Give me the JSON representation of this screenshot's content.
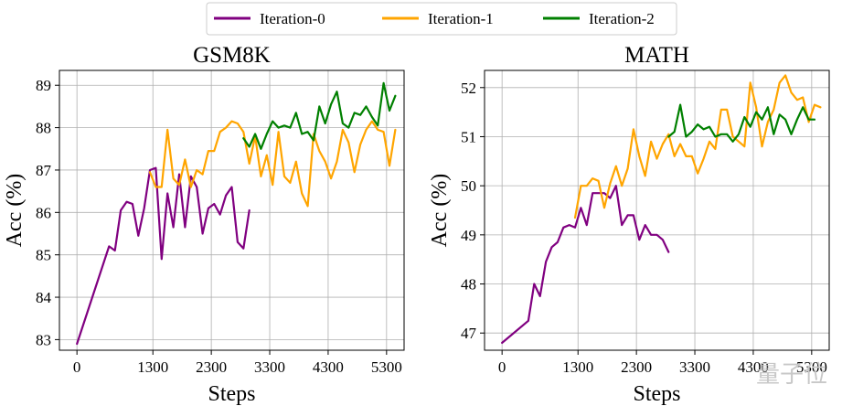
{
  "legend": {
    "entries": [
      {
        "name": "Iteration-0",
        "color": "#800080"
      },
      {
        "name": "Iteration-1",
        "color": "#FFA500"
      },
      {
        "name": "Iteration-2",
        "color": "#008000"
      }
    ],
    "placement": "top-center"
  },
  "watermark": "量子位",
  "chart_data": [
    {
      "type": "line",
      "title": "GSM8K",
      "xlabel": "Steps",
      "ylabel": "Acc (%)",
      "xlim": [
        -300,
        5600
      ],
      "ylim": [
        82.75,
        89.35
      ],
      "xticks": [
        0,
        1300,
        2300,
        3300,
        4300,
        5300
      ],
      "yticks": [
        83,
        84,
        85,
        86,
        87,
        88,
        89
      ],
      "grid": true,
      "series": [
        {
          "name": "Iteration-0",
          "color": "#800080",
          "points": [
            [
              0,
              82.9
            ],
            [
              550,
              85.2
            ],
            [
              650,
              85.1
            ],
            [
              750,
              86.05
            ],
            [
              850,
              86.25
            ],
            [
              950,
              86.2
            ],
            [
              1050,
              85.45
            ],
            [
              1150,
              86.1
            ],
            [
              1250,
              87.0
            ],
            [
              1350,
              87.05
            ],
            [
              1450,
              84.9
            ],
            [
              1550,
              86.45
            ],
            [
              1650,
              85.65
            ],
            [
              1750,
              86.9
            ],
            [
              1850,
              85.65
            ],
            [
              1950,
              86.85
            ],
            [
              2050,
              86.6
            ],
            [
              2150,
              85.5
            ],
            [
              2250,
              86.1
            ],
            [
              2350,
              86.2
            ],
            [
              2450,
              85.95
            ],
            [
              2550,
              86.4
            ],
            [
              2650,
              86.6
            ],
            [
              2750,
              85.3
            ],
            [
              2850,
              85.15
            ],
            [
              2950,
              86.05
            ]
          ]
        },
        {
          "name": "Iteration-1",
          "color": "#FFA500",
          "points": [
            [
              1250,
              86.95
            ],
            [
              1350,
              86.6
            ],
            [
              1450,
              86.6
            ],
            [
              1550,
              87.95
            ],
            [
              1650,
              86.8
            ],
            [
              1750,
              86.65
            ],
            [
              1850,
              87.25
            ],
            [
              1950,
              86.6
            ],
            [
              2050,
              87.0
            ],
            [
              2150,
              86.9
            ],
            [
              2250,
              87.45
            ],
            [
              2350,
              87.45
            ],
            [
              2450,
              87.9
            ],
            [
              2550,
              88.0
            ],
            [
              2650,
              88.15
            ],
            [
              2750,
              88.1
            ],
            [
              2850,
              87.9
            ],
            [
              2950,
              87.15
            ],
            [
              3050,
              87.8
            ],
            [
              3150,
              86.85
            ],
            [
              3250,
              87.35
            ],
            [
              3350,
              86.65
            ],
            [
              3450,
              87.9
            ],
            [
              3550,
              86.85
            ],
            [
              3650,
              86.7
            ],
            [
              3750,
              87.2
            ],
            [
              3850,
              86.45
            ],
            [
              3950,
              86.15
            ],
            [
              4050,
              87.85
            ],
            [
              4150,
              87.45
            ],
            [
              4250,
              87.2
            ],
            [
              4350,
              86.8
            ],
            [
              4450,
              87.2
            ],
            [
              4550,
              87.95
            ],
            [
              4650,
              87.65
            ],
            [
              4750,
              86.95
            ],
            [
              4850,
              87.6
            ],
            [
              4950,
              87.95
            ],
            [
              5050,
              88.15
            ],
            [
              5150,
              87.95
            ],
            [
              5250,
              87.9
            ],
            [
              5350,
              87.1
            ],
            [
              5450,
              87.95
            ]
          ]
        },
        {
          "name": "Iteration-2",
          "color": "#008000",
          "points": [
            [
              2850,
              87.75
            ],
            [
              2950,
              87.55
            ],
            [
              3050,
              87.85
            ],
            [
              3150,
              87.5
            ],
            [
              3250,
              87.85
            ],
            [
              3350,
              88.15
            ],
            [
              3450,
              88.0
            ],
            [
              3550,
              88.05
            ],
            [
              3650,
              88.0
            ],
            [
              3750,
              88.35
            ],
            [
              3850,
              87.85
            ],
            [
              3950,
              87.9
            ],
            [
              4050,
              87.7
            ],
            [
              4150,
              88.5
            ],
            [
              4250,
              88.1
            ],
            [
              4350,
              88.55
            ],
            [
              4450,
              88.85
            ],
            [
              4550,
              88.1
            ],
            [
              4650,
              88.0
            ],
            [
              4750,
              88.35
            ],
            [
              4850,
              88.3
            ],
            [
              4950,
              88.5
            ],
            [
              5050,
              88.25
            ],
            [
              5150,
              88.05
            ],
            [
              5250,
              89.05
            ],
            [
              5350,
              88.4
            ],
            [
              5450,
              88.75
            ]
          ]
        }
      ]
    },
    {
      "type": "line",
      "title": "MATH",
      "xlabel": "Steps",
      "ylabel": "Acc (%)",
      "xlim": [
        -300,
        5600
      ],
      "ylim": [
        46.65,
        52.35
      ],
      "xticks": [
        0,
        1300,
        2300,
        3300,
        4300,
        5300
      ],
      "yticks": [
        47,
        48,
        49,
        50,
        51,
        52
      ],
      "grid": true,
      "series": [
        {
          "name": "Iteration-0",
          "color": "#800080",
          "points": [
            [
              0,
              46.8
            ],
            [
              450,
              47.25
            ],
            [
              550,
              48.0
            ],
            [
              650,
              47.75
            ],
            [
              750,
              48.45
            ],
            [
              850,
              48.75
            ],
            [
              950,
              48.85
            ],
            [
              1050,
              49.15
            ],
            [
              1150,
              49.2
            ],
            [
              1250,
              49.15
            ],
            [
              1350,
              49.55
            ],
            [
              1450,
              49.2
            ],
            [
              1550,
              49.85
            ],
            [
              1650,
              49.85
            ],
            [
              1750,
              49.85
            ],
            [
              1850,
              49.75
            ],
            [
              1950,
              50.0
            ],
            [
              2050,
              49.2
            ],
            [
              2150,
              49.4
            ],
            [
              2250,
              49.4
            ],
            [
              2350,
              48.9
            ],
            [
              2450,
              49.2
            ],
            [
              2550,
              49.0
            ],
            [
              2650,
              49.0
            ],
            [
              2750,
              48.9
            ],
            [
              2850,
              48.65
            ]
          ]
        },
        {
          "name": "Iteration-1",
          "color": "#FFA500",
          "points": [
            [
              1250,
              49.35
            ],
            [
              1350,
              50.0
            ],
            [
              1450,
              50.0
            ],
            [
              1550,
              50.15
            ],
            [
              1650,
              50.1
            ],
            [
              1750,
              49.55
            ],
            [
              1850,
              50.05
            ],
            [
              1950,
              50.4
            ],
            [
              2050,
              50.0
            ],
            [
              2150,
              50.35
            ],
            [
              2250,
              51.15
            ],
            [
              2350,
              50.6
            ],
            [
              2450,
              50.2
            ],
            [
              2550,
              50.9
            ],
            [
              2650,
              50.55
            ],
            [
              2750,
              50.85
            ],
            [
              2850,
              51.05
            ],
            [
              2950,
              50.6
            ],
            [
              3050,
              50.85
            ],
            [
              3150,
              50.6
            ],
            [
              3250,
              50.6
            ],
            [
              3350,
              50.25
            ],
            [
              3450,
              50.55
            ],
            [
              3550,
              50.9
            ],
            [
              3650,
              50.75
            ],
            [
              3750,
              51.55
            ],
            [
              3850,
              51.55
            ],
            [
              3950,
              51.0
            ],
            [
              4050,
              50.9
            ],
            [
              4150,
              50.8
            ],
            [
              4250,
              52.1
            ],
            [
              4350,
              51.6
            ],
            [
              4450,
              50.8
            ],
            [
              4550,
              51.3
            ],
            [
              4650,
              51.55
            ],
            [
              4750,
              52.1
            ],
            [
              4850,
              52.25
            ],
            [
              4950,
              51.9
            ],
            [
              5050,
              51.75
            ],
            [
              5150,
              51.8
            ],
            [
              5250,
              51.3
            ],
            [
              5350,
              51.65
            ],
            [
              5450,
              51.6
            ]
          ]
        },
        {
          "name": "Iteration-2",
          "color": "#008000",
          "points": [
            [
              2850,
              51.0
            ],
            [
              2950,
              51.1
            ],
            [
              3050,
              51.65
            ],
            [
              3150,
              51.0
            ],
            [
              3250,
              51.1
            ],
            [
              3350,
              51.25
            ],
            [
              3450,
              51.15
            ],
            [
              3550,
              51.2
            ],
            [
              3650,
              51.0
            ],
            [
              3750,
              51.05
            ],
            [
              3850,
              51.05
            ],
            [
              3950,
              50.9
            ],
            [
              4050,
              51.05
            ],
            [
              4150,
              51.4
            ],
            [
              4250,
              51.2
            ],
            [
              4350,
              51.5
            ],
            [
              4450,
              51.35
            ],
            [
              4550,
              51.6
            ],
            [
              4650,
              51.05
            ],
            [
              4750,
              51.45
            ],
            [
              4850,
              51.35
            ],
            [
              4950,
              51.05
            ],
            [
              5050,
              51.35
            ],
            [
              5150,
              51.6
            ],
            [
              5250,
              51.35
            ],
            [
              5350,
              51.35
            ]
          ]
        }
      ]
    }
  ]
}
